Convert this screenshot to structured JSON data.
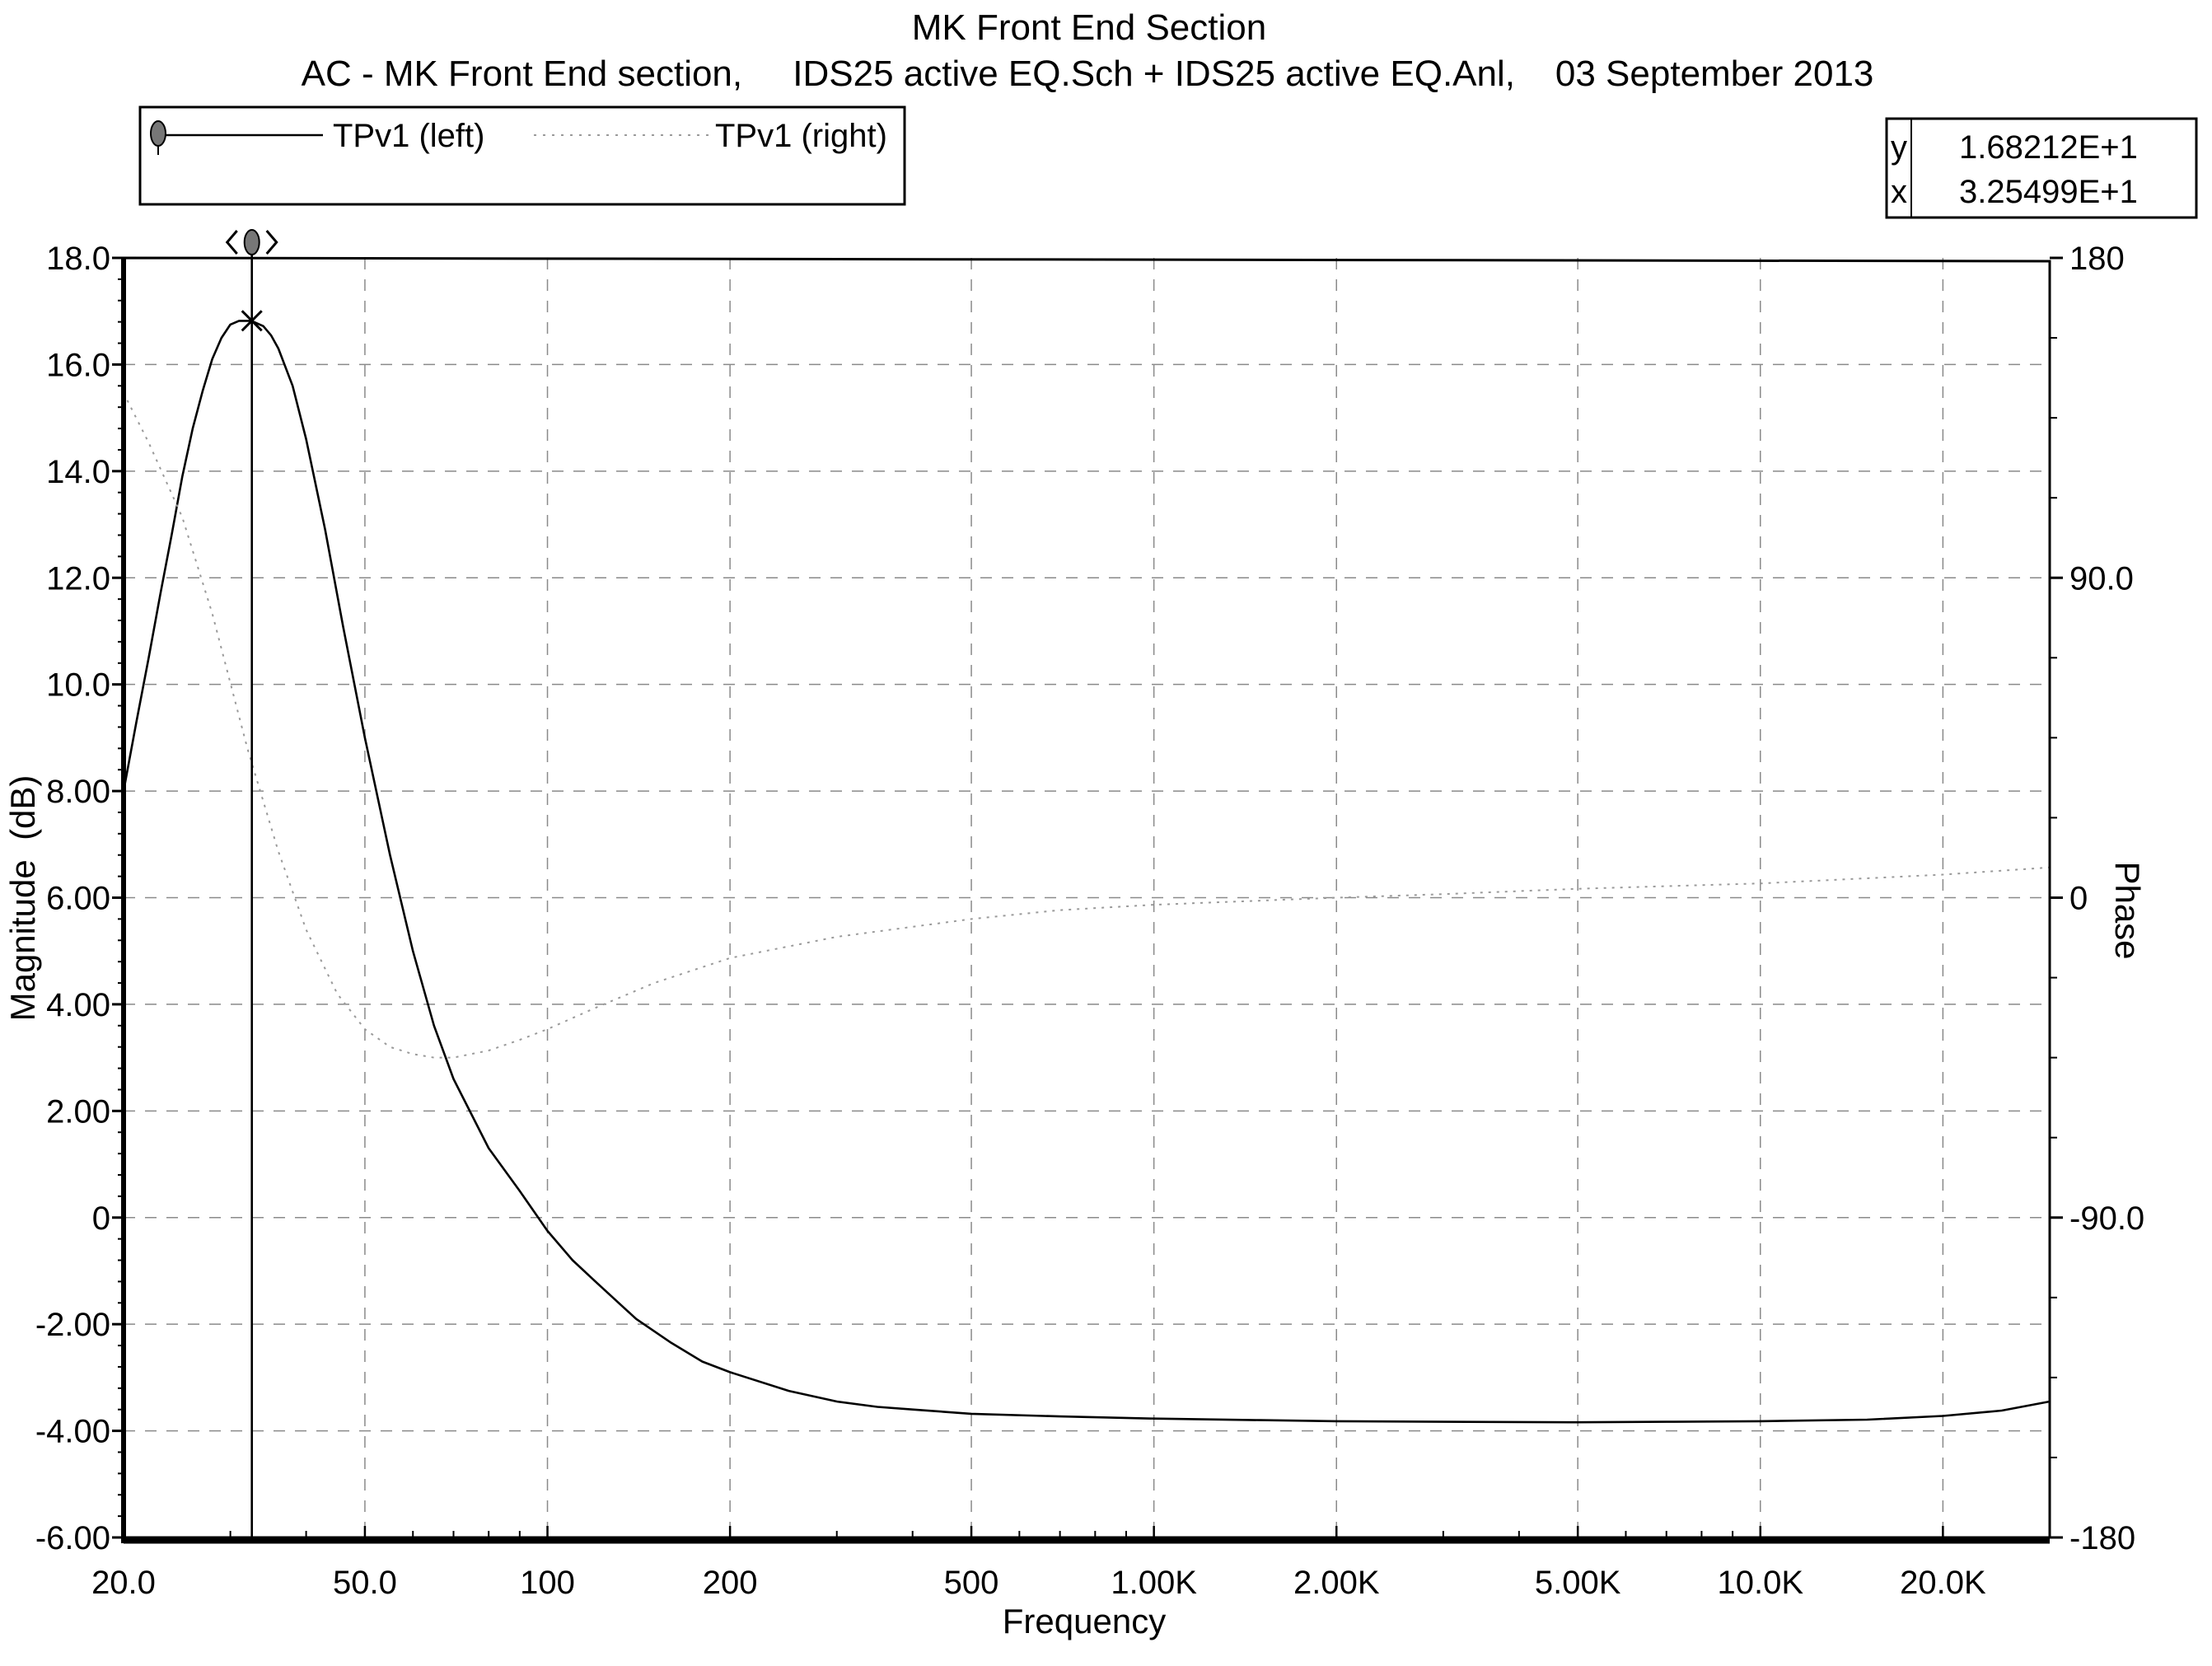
{
  "chart_data": {
    "type": "line",
    "title": "MK Front End Section",
    "subtitle": "AC - MK Front End section,     IDS25 active EQ.Sch + IDS25 active EQ.Anl,    03 September 2013",
    "xlabel": "Frequency",
    "ylabel": "Magnitude  (dB)",
    "y2label": "Phase",
    "x_scale": "log",
    "xlim": [
      20,
      30000
    ],
    "ylim": [
      -6,
      18
    ],
    "y2lim": [
      -180,
      180
    ],
    "grid": true,
    "legend_position": "top-left",
    "x_ticks": [
      {
        "v": 20,
        "label": "20.0"
      },
      {
        "v": 50,
        "label": "50.0"
      },
      {
        "v": 100,
        "label": "100"
      },
      {
        "v": 200,
        "label": "200"
      },
      {
        "v": 500,
        "label": "500"
      },
      {
        "v": 1000,
        "label": "1.00K"
      },
      {
        "v": 2000,
        "label": "2.00K"
      },
      {
        "v": 5000,
        "label": "5.00K"
      },
      {
        "v": 10000,
        "label": "10.0K"
      },
      {
        "v": 20000,
        "label": "20.0K"
      }
    ],
    "y_ticks": [
      {
        "v": 18,
        "label": "18.0"
      },
      {
        "v": 16,
        "label": "16.0"
      },
      {
        "v": 14,
        "label": "14.0"
      },
      {
        "v": 12,
        "label": "12.0"
      },
      {
        "v": 10,
        "label": "10.0"
      },
      {
        "v": 8,
        "label": "8.00"
      },
      {
        "v": 6,
        "label": "6.00"
      },
      {
        "v": 4,
        "label": "4.00"
      },
      {
        "v": 2,
        "label": "2.00"
      },
      {
        "v": 0,
        "label": "0"
      },
      {
        "v": -2,
        "label": "-2.00"
      },
      {
        "v": -4,
        "label": "-4.00"
      },
      {
        "v": -6,
        "label": "-6.00"
      }
    ],
    "y2_ticks": [
      {
        "v": 180,
        "label": "180"
      },
      {
        "v": 90,
        "label": "90.0"
      },
      {
        "v": 0,
        "label": "0"
      },
      {
        "v": -90,
        "label": "-90.0"
      },
      {
        "v": -180,
        "label": "-180"
      }
    ],
    "series": [
      {
        "name": "TPv1 (left)",
        "axis": "left",
        "style": "solid",
        "color": "#000000",
        "x": [
          20,
          21,
          22,
          23,
          24,
          25,
          26,
          27,
          28,
          29,
          30,
          31,
          32.5,
          34,
          35,
          36,
          38,
          40,
          43,
          46,
          50,
          55,
          60,
          65,
          70,
          80,
          90,
          100,
          110,
          120,
          140,
          160,
          180,
          200,
          250,
          300,
          350,
          400,
          500,
          700,
          1000,
          1500,
          2000,
          3000,
          5000,
          7000,
          10000,
          15000,
          20000,
          25000,
          30000
        ],
        "y": [
          8.0,
          9.3,
          10.5,
          11.7,
          12.8,
          13.9,
          14.8,
          15.5,
          16.1,
          16.5,
          16.75,
          16.82,
          16.82,
          16.72,
          16.55,
          16.3,
          15.6,
          14.6,
          12.9,
          11.1,
          9.0,
          6.8,
          5.0,
          3.6,
          2.6,
          1.3,
          0.5,
          -0.25,
          -0.8,
          -1.2,
          -1.9,
          -2.35,
          -2.7,
          -2.9,
          -3.25,
          -3.45,
          -3.55,
          -3.6,
          -3.68,
          -3.73,
          -3.77,
          -3.8,
          -3.82,
          -3.83,
          -3.84,
          -3.83,
          -3.82,
          -3.79,
          -3.72,
          -3.62,
          -3.45
        ]
      },
      {
        "name": "TPv1 (right)",
        "axis": "right",
        "style": "dotted",
        "color": "#9a9a9a",
        "x": [
          20,
          22,
          25,
          28,
          32,
          36,
          40,
          45,
          50,
          55,
          60,
          65,
          70,
          80,
          90,
          100,
          120,
          150,
          200,
          300,
          500,
          700,
          1000,
          2000,
          3000,
          5000,
          10000,
          20000,
          30000
        ],
        "y": [
          142,
          128,
          107,
          80,
          42,
          13,
          -9,
          -27,
          -37,
          -42,
          -44,
          -45,
          -45,
          -43,
          -40,
          -37,
          -31,
          -24,
          -17,
          -11,
          -6,
          -3.5,
          -2,
          0,
          1,
          2.5,
          4,
          6.5,
          8.5
        ]
      }
    ],
    "cursor": {
      "x": 32.5499,
      "y": 16.8212,
      "x_readout": "3.25499E+1",
      "y_readout": "1.68212E+1",
      "x_label": "x",
      "y_label": "y"
    }
  }
}
